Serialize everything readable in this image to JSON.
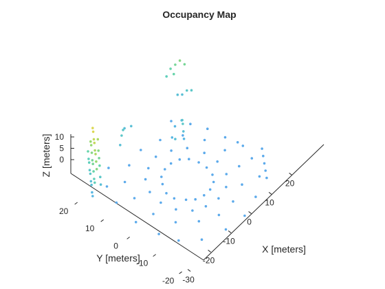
{
  "chart_data": {
    "type": "scatter",
    "title": "Occupancy Map",
    "xlabel": "X [meters]",
    "ylabel": "Y [meters]",
    "zlabel": "Z [meters]",
    "x_ticks": [
      "-30",
      "-20",
      "-10",
      "0",
      "10",
      "20"
    ],
    "y_ticks": [
      "-20",
      "-10",
      "0",
      "10",
      "20"
    ],
    "z_ticks": [
      "0",
      "5",
      "10"
    ],
    "xlim": [
      -33,
      28
    ],
    "ylim": [
      -22,
      28
    ],
    "zlim": [
      -3,
      12
    ],
    "view": "3-D perspective, oblique from above",
    "grid": false,
    "colormap": [
      "#6f7fff",
      "#57b5e6",
      "#5fd3b4",
      "#9ad96b",
      "#f2d84a"
    ],
    "color_by": "z",
    "series": [
      {
        "points": [
          [
            -11,
            2,
            0
          ],
          [
            -9,
            5,
            0
          ],
          [
            -7,
            7,
            0
          ],
          [
            -4,
            8,
            0
          ],
          [
            -1,
            8,
            0
          ],
          [
            2,
            7,
            0
          ],
          [
            4,
            5,
            0
          ],
          [
            5,
            2,
            0
          ],
          [
            5,
            -1,
            0
          ],
          [
            4,
            -4,
            0
          ],
          [
            2,
            -6,
            0
          ],
          [
            -1,
            -7,
            0
          ],
          [
            -4,
            -7,
            0
          ],
          [
            -7,
            -6,
            0
          ],
          [
            -9,
            -4,
            0
          ],
          [
            -11,
            -1,
            0
          ],
          [
            -15,
            1,
            0
          ],
          [
            -14,
            6,
            0
          ],
          [
            -11,
            10,
            0
          ],
          [
            -7,
            12,
            0
          ],
          [
            -2,
            13,
            0
          ],
          [
            3,
            11,
            0
          ],
          [
            7,
            8,
            0
          ],
          [
            9,
            3,
            0
          ],
          [
            9,
            -2,
            0
          ],
          [
            7,
            -7,
            0
          ],
          [
            3,
            -10,
            0
          ],
          [
            -2,
            -11,
            0
          ],
          [
            -7,
            -10,
            0
          ],
          [
            -11,
            -8,
            0
          ],
          [
            -14,
            -4,
            0
          ],
          [
            -20,
            0,
            0
          ],
          [
            -19,
            8,
            0
          ],
          [
            -16,
            14,
            0
          ],
          [
            -10,
            17,
            0
          ],
          [
            -3,
            18,
            0
          ],
          [
            4,
            16,
            0
          ],
          [
            10,
            12,
            0
          ],
          [
            13,
            6,
            0
          ],
          [
            14,
            -1,
            0
          ],
          [
            12,
            -8,
            0
          ],
          [
            7,
            -13,
            0
          ],
          [
            0,
            -15,
            0
          ],
          [
            -7,
            -15,
            0
          ],
          [
            -13,
            -12,
            0
          ],
          [
            -18,
            -7,
            0
          ],
          [
            -26,
            2,
            0
          ],
          [
            -25,
            -6,
            0
          ],
          [
            -23,
            -12,
            0
          ],
          [
            -18,
            -17,
            0
          ],
          [
            -10,
            -20,
            0
          ],
          [
            -2,
            -21,
            0
          ],
          [
            6,
            -19,
            0
          ],
          [
            13,
            -15,
            0
          ],
          [
            17,
            -9,
            0
          ],
          [
            19,
            -2,
            0
          ],
          [
            -24,
            11,
            0
          ],
          [
            -21,
            17,
            0
          ],
          [
            -15,
            21,
            0
          ],
          [
            14,
            -17,
            0
          ],
          [
            16,
            -15,
            0
          ],
          [
            18,
            -13,
            0
          ],
          [
            20,
            -11,
            0
          ],
          [
            22,
            -9,
            0
          ],
          [
            19,
            -4,
            0
          ],
          [
            18,
            2,
            0
          ],
          [
            17,
            8,
            0
          ],
          [
            15,
            13,
            0
          ],
          [
            12,
            18,
            0
          ],
          [
            -28,
            17,
            1
          ],
          [
            -27,
            18,
            1
          ],
          [
            -26,
            19,
            2
          ],
          [
            -25,
            20,
            2
          ],
          [
            -24,
            21,
            3
          ],
          [
            -23,
            22,
            3
          ],
          [
            -22,
            23,
            4
          ],
          [
            -21,
            24,
            4
          ],
          [
            -20,
            25,
            5
          ],
          [
            -27,
            17,
            4
          ],
          [
            -26,
            18,
            4
          ],
          [
            -25,
            19,
            5
          ],
          [
            -24,
            20,
            6
          ],
          [
            -23,
            21,
            6
          ],
          [
            -22,
            22,
            7
          ],
          [
            -21,
            23,
            8
          ],
          [
            -20,
            24,
            8
          ],
          [
            -26,
            17,
            7
          ],
          [
            -25,
            18,
            8
          ],
          [
            -24,
            19,
            9
          ],
          [
            -23,
            20,
            9
          ],
          [
            -22,
            21,
            10
          ],
          [
            -21,
            22,
            10
          ],
          [
            -20,
            23,
            11
          ],
          [
            -19,
            24,
            11
          ],
          [
            -24,
            17,
            2
          ],
          [
            -23,
            18,
            3
          ],
          [
            -22,
            19,
            5
          ],
          [
            -21,
            20,
            6
          ],
          [
            -20,
            21,
            7
          ],
          [
            -19,
            22,
            9
          ],
          [
            8,
            10,
            1
          ],
          [
            9,
            11,
            2
          ],
          [
            10,
            12,
            3
          ],
          [
            11,
            13,
            3
          ],
          [
            12,
            14,
            2
          ],
          [
            10,
            15,
            1
          ],
          [
            6,
            13,
            1
          ],
          [
            5,
            11,
            2
          ],
          [
            22,
            26,
            5
          ],
          [
            23,
            25,
            6
          ],
          [
            24,
            24,
            7
          ],
          [
            25,
            23,
            6
          ],
          [
            21,
            24,
            5
          ],
          [
            20,
            26,
            4
          ],
          [
            -8,
            22,
            2
          ],
          [
            -6,
            23,
            3
          ],
          [
            -4,
            24,
            3
          ],
          [
            -2,
            25,
            2
          ],
          [
            0,
            24,
            2
          ],
          [
            20,
            20,
            2
          ],
          [
            21,
            19,
            3
          ],
          [
            22,
            18,
            3
          ],
          [
            19,
            21,
            2
          ]
        ]
      }
    ]
  }
}
